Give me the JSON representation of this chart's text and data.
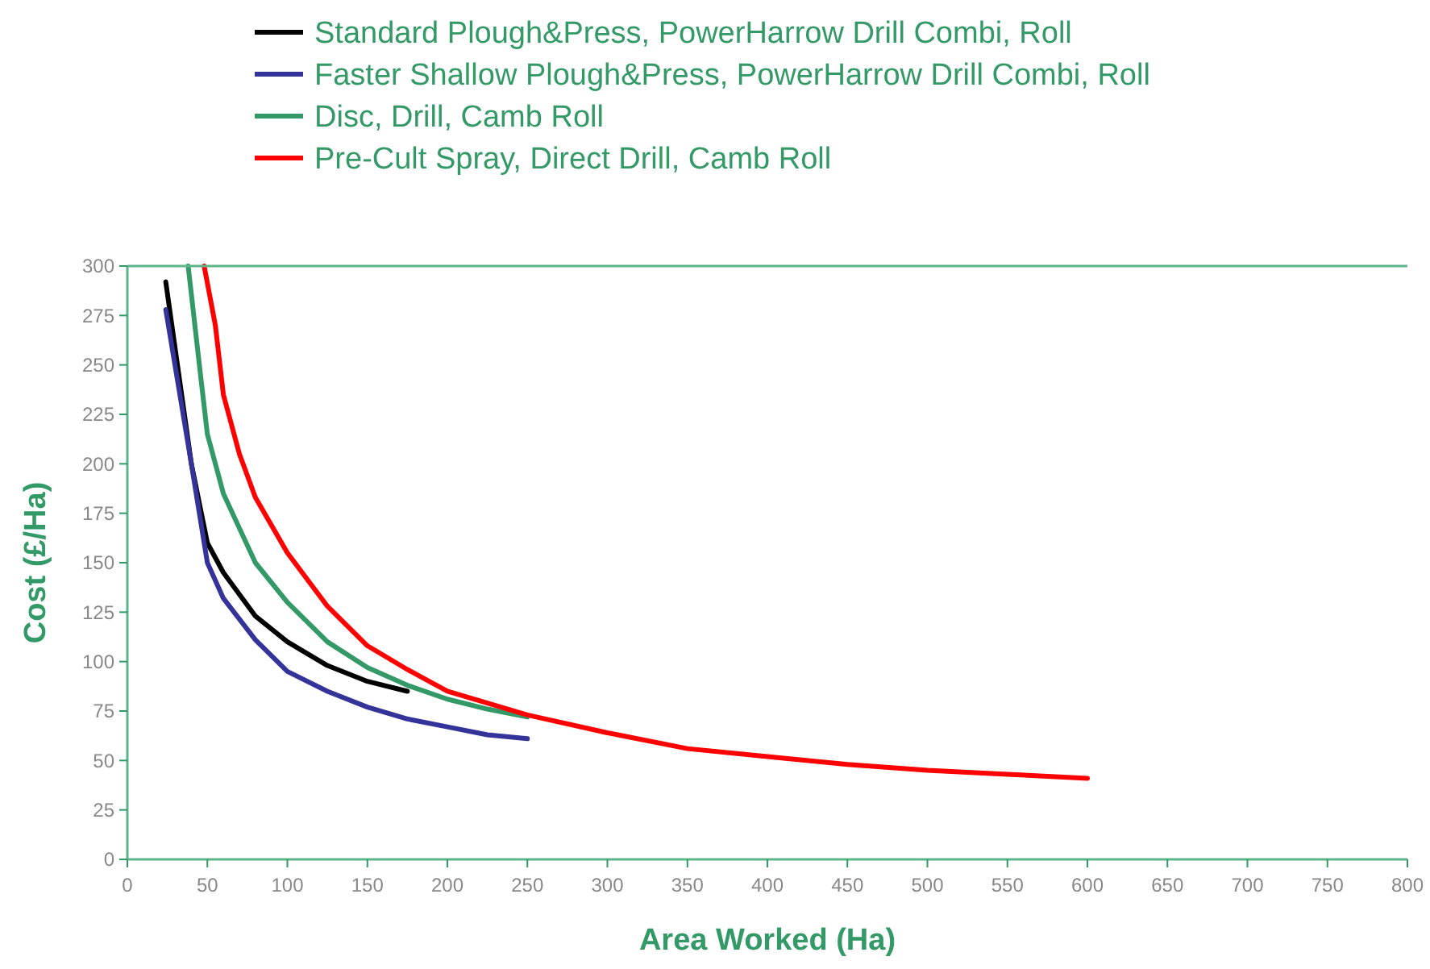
{
  "chart_data": {
    "type": "line",
    "xlabel": "Area Worked (Ha)",
    "ylabel": "Cost (£/Ha)",
    "xlim": [
      0,
      800
    ],
    "xticks": [
      0,
      50,
      100,
      150,
      200,
      250,
      300,
      350,
      400,
      450,
      500,
      550,
      600,
      650,
      700,
      750,
      800
    ],
    "ylim": [
      0,
      300
    ],
    "yticks": [
      0,
      25,
      50,
      75,
      100,
      125,
      150,
      175,
      200,
      225,
      250,
      275,
      300
    ],
    "legend": "top",
    "grid": false,
    "marker": "none",
    "line_style": "solid",
    "series": [
      {
        "name": "Standard Plough&Press, PowerHarrow Drill Combi, Roll",
        "color": "#000000",
        "x": [
          24,
          40,
          50,
          60,
          80,
          100,
          125,
          150,
          175
        ],
        "values": [
          292,
          200,
          160,
          145,
          123,
          110,
          98,
          90,
          85
        ]
      },
      {
        "name": "Faster Shallow Plough&Press, PowerHarrow Drill Combi, Roll",
        "color": "#333399",
        "x": [
          24,
          40,
          50,
          60,
          80,
          100,
          125,
          150,
          175,
          200,
          225,
          250
        ],
        "values": [
          278,
          200,
          150,
          132,
          111,
          95,
          85,
          77,
          71,
          67,
          63,
          61
        ]
      },
      {
        "name": "Disc, Drill, Camb Roll",
        "color": "#339966",
        "x": [
          38,
          45,
          50,
          60,
          80,
          100,
          125,
          150,
          175,
          200,
          225,
          250
        ],
        "values": [
          300,
          250,
          215,
          185,
          150,
          130,
          110,
          97,
          88,
          81,
          76,
          72
        ]
      },
      {
        "name": "Pre-Cult Spray, Direct Drill, Camb Roll",
        "color": "#ff0000",
        "x": [
          48,
          55,
          60,
          70,
          80,
          100,
          125,
          150,
          175,
          200,
          250,
          300,
          350,
          400,
          450,
          500,
          550,
          600
        ],
        "values": [
          300,
          270,
          235,
          205,
          183,
          155,
          128,
          108,
          96,
          85,
          73,
          64,
          56,
          52,
          48,
          45,
          43,
          41
        ]
      }
    ]
  }
}
